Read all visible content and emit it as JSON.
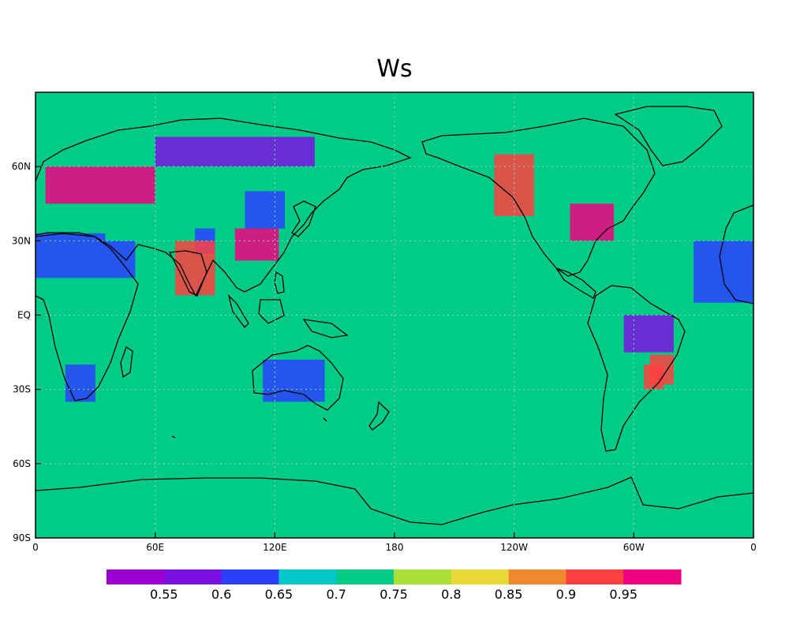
{
  "title": "Ws",
  "background_color": "#00CC88",
  "coast_color": "#000000",
  "lat_ticks": [
    "60N",
    "30N",
    "EQ",
    "30S",
    "60S",
    "90S"
  ],
  "lon_ticks": [
    "0",
    "60E",
    "120E",
    "180",
    "120W",
    "60W",
    "0"
  ],
  "colorbar": {
    "labels": [
      "0.55",
      "0.6",
      "0.65",
      "0.7",
      "0.75",
      "0.8",
      "0.85",
      "0.9",
      "0.95"
    ],
    "colors": [
      "#9B00D0",
      "#7A10E0",
      "#2A40FF",
      "#00C8C8",
      "#00CC88",
      "#A8E038",
      "#E8D838",
      "#F08830",
      "#FF4040",
      "#F00080"
    ]
  },
  "chart_data": {
    "type": "heatmap",
    "title": "Ws",
    "xlabel": "",
    "ylabel": "",
    "xlim": [
      0,
      360
    ],
    "ylim": [
      -90,
      90
    ],
    "x_ticks": [
      0,
      60,
      120,
      180,
      240,
      300,
      360
    ],
    "y_ticks": [
      60,
      30,
      0,
      -30,
      -60,
      -90
    ],
    "levels": [
      0.55,
      0.6,
      0.65,
      0.7,
      0.75,
      0.8,
      0.85,
      0.9,
      0.95
    ],
    "ocean_value": 0.75,
    "grid": true,
    "legend": "bottom",
    "regions": [
      {
        "lon": [
          35,
          50,
          50,
          35
        ],
        "lat": [
          15,
          15,
          30,
          30
        ],
        "value": 0.63
      },
      {
        "lon": [
          0,
          35,
          35,
          0
        ],
        "lat": [
          15,
          15,
          33,
          33
        ],
        "value": 0.63
      },
      {
        "lon": [
          15,
          30,
          30,
          15
        ],
        "lat": [
          -35,
          -35,
          -20,
          -20
        ],
        "value": 0.63
      },
      {
        "lon": [
          114,
          145,
          145,
          114
        ],
        "lat": [
          -35,
          -35,
          -18,
          -18
        ],
        "value": 0.63
      },
      {
        "lon": [
          80,
          90,
          90,
          80
        ],
        "lat": [
          25,
          25,
          35,
          35
        ],
        "value": 0.63
      },
      {
        "lon": [
          105,
          125,
          125,
          105
        ],
        "lat": [
          35,
          35,
          50,
          50
        ],
        "value": 0.63
      },
      {
        "lon": [
          5,
          60,
          60,
          5
        ],
        "lat": [
          45,
          45,
          60,
          60
        ],
        "value": 0.95
      },
      {
        "lon": [
          70,
          90,
          90,
          70
        ],
        "lat": [
          8,
          8,
          30,
          30
        ],
        "value": 0.92
      },
      {
        "lon": [
          100,
          122,
          122,
          100
        ],
        "lat": [
          22,
          22,
          35,
          35
        ],
        "value": 0.95
      },
      {
        "lon": [
          268,
          290,
          290,
          268
        ],
        "lat": [
          30,
          30,
          45,
          45
        ],
        "value": 0.95
      },
      {
        "lon": [
          295,
          320,
          320,
          295
        ],
        "lat": [
          -15,
          -15,
          0,
          0
        ],
        "value": 0.57
      },
      {
        "lon": [
          305,
          315,
          315,
          305
        ],
        "lat": [
          -30,
          -30,
          -20,
          -20
        ],
        "value": 0.92
      },
      {
        "lon": [
          308,
          320,
          320,
          308
        ],
        "lat": [
          -28,
          -28,
          -16,
          -16
        ],
        "value": 0.9
      },
      {
        "lon": [
          60,
          140,
          140,
          60
        ],
        "lat": [
          60,
          60,
          72,
          72
        ],
        "value": 0.57
      },
      {
        "lon": [
          230,
          250,
          250,
          230
        ],
        "lat": [
          40,
          40,
          65,
          65
        ],
        "value": 0.93
      },
      {
        "lon": [
          330,
          360,
          360,
          330
        ],
        "lat": [
          5,
          5,
          30,
          30
        ],
        "value": 0.63
      }
    ]
  }
}
